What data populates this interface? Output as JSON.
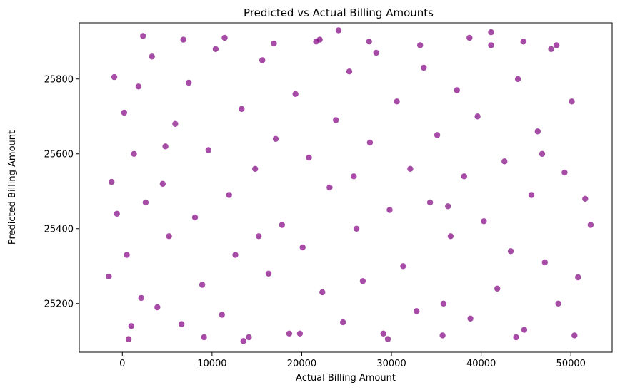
{
  "chart_data": {
    "type": "scatter",
    "title": "Predicted vs Actual Billing Amounts",
    "xlabel": "Actual Billing Amount",
    "ylabel": "Predicted Billing Amount",
    "xlim": [
      -4800,
      54600
    ],
    "ylim": [
      25070,
      25950
    ],
    "xticks": [
      0,
      10000,
      20000,
      30000,
      40000,
      50000
    ],
    "yticks": [
      25200,
      25400,
      25600,
      25800
    ],
    "grid": false,
    "legend": "none",
    "marker_color": "#800080",
    "marker_alpha": 0.7,
    "series": [
      {
        "x": [
          -1500,
          -1200,
          -900,
          -600,
          200,
          500,
          1000,
          1300,
          1800,
          2100,
          2600,
          3300,
          3900,
          4500,
          5200,
          5900,
          6600,
          7400,
          8100,
          8900,
          9600,
          10400,
          11100,
          11900,
          12600,
          13300,
          14100,
          14800,
          15600,
          16300,
          17100,
          17800,
          18600,
          19300,
          20100,
          20800,
          21600,
          22300,
          23100,
          23800,
          24600,
          25300,
          26100,
          26800,
          27600,
          28300,
          29100,
          29800,
          30600,
          31300,
          32100,
          32800,
          33600,
          34300,
          35100,
          35800,
          36600,
          37300,
          38100,
          38800,
          39600,
          40300,
          41100,
          41800,
          42600,
          43300,
          44100,
          44800,
          45600,
          46300,
          47100,
          47800,
          48600,
          49300,
          50100,
          50800,
          51600,
          52200,
          2300,
          6800,
          11400,
          16900,
          22000,
          24100,
          27500,
          33200,
          38700,
          41100,
          44700,
          48400,
          700,
          9100,
          13500,
          19800,
          29600,
          35700,
          43900,
          50400,
          4800,
          15200,
          25800,
          36300,
          46800
        ],
        "y": [
          25272,
          25525,
          25805,
          25440,
          25710,
          25330,
          25140,
          25600,
          25780,
          25215,
          25470,
          25860,
          25190,
          25520,
          25380,
          25680,
          25145,
          25790,
          25430,
          25250,
          25610,
          25880,
          25170,
          25490,
          25330,
          25720,
          25110,
          25560,
          25850,
          25280,
          25640,
          25410,
          25120,
          25760,
          25350,
          25590,
          25900,
          25230,
          25510,
          25690,
          25150,
          25820,
          25400,
          25260,
          25630,
          25870,
          25120,
          25450,
          25740,
          25300,
          25560,
          25180,
          25830,
          25470,
          25650,
          25200,
          25380,
          25770,
          25540,
          25160,
          25700,
          25420,
          25890,
          25240,
          25580,
          25340,
          25800,
          25130,
          25490,
          25660,
          25310,
          25880,
          25200,
          25550,
          25740,
          25270,
          25480,
          25410,
          25915,
          25905,
          25910,
          25895,
          25905,
          25930,
          25900,
          25890,
          25910,
          25925,
          25900,
          25890,
          25105,
          25110,
          25100,
          25120,
          25105,
          25115,
          25110,
          25115,
          25620,
          25380,
          25540,
          25460,
          25600
        ]
      }
    ]
  }
}
